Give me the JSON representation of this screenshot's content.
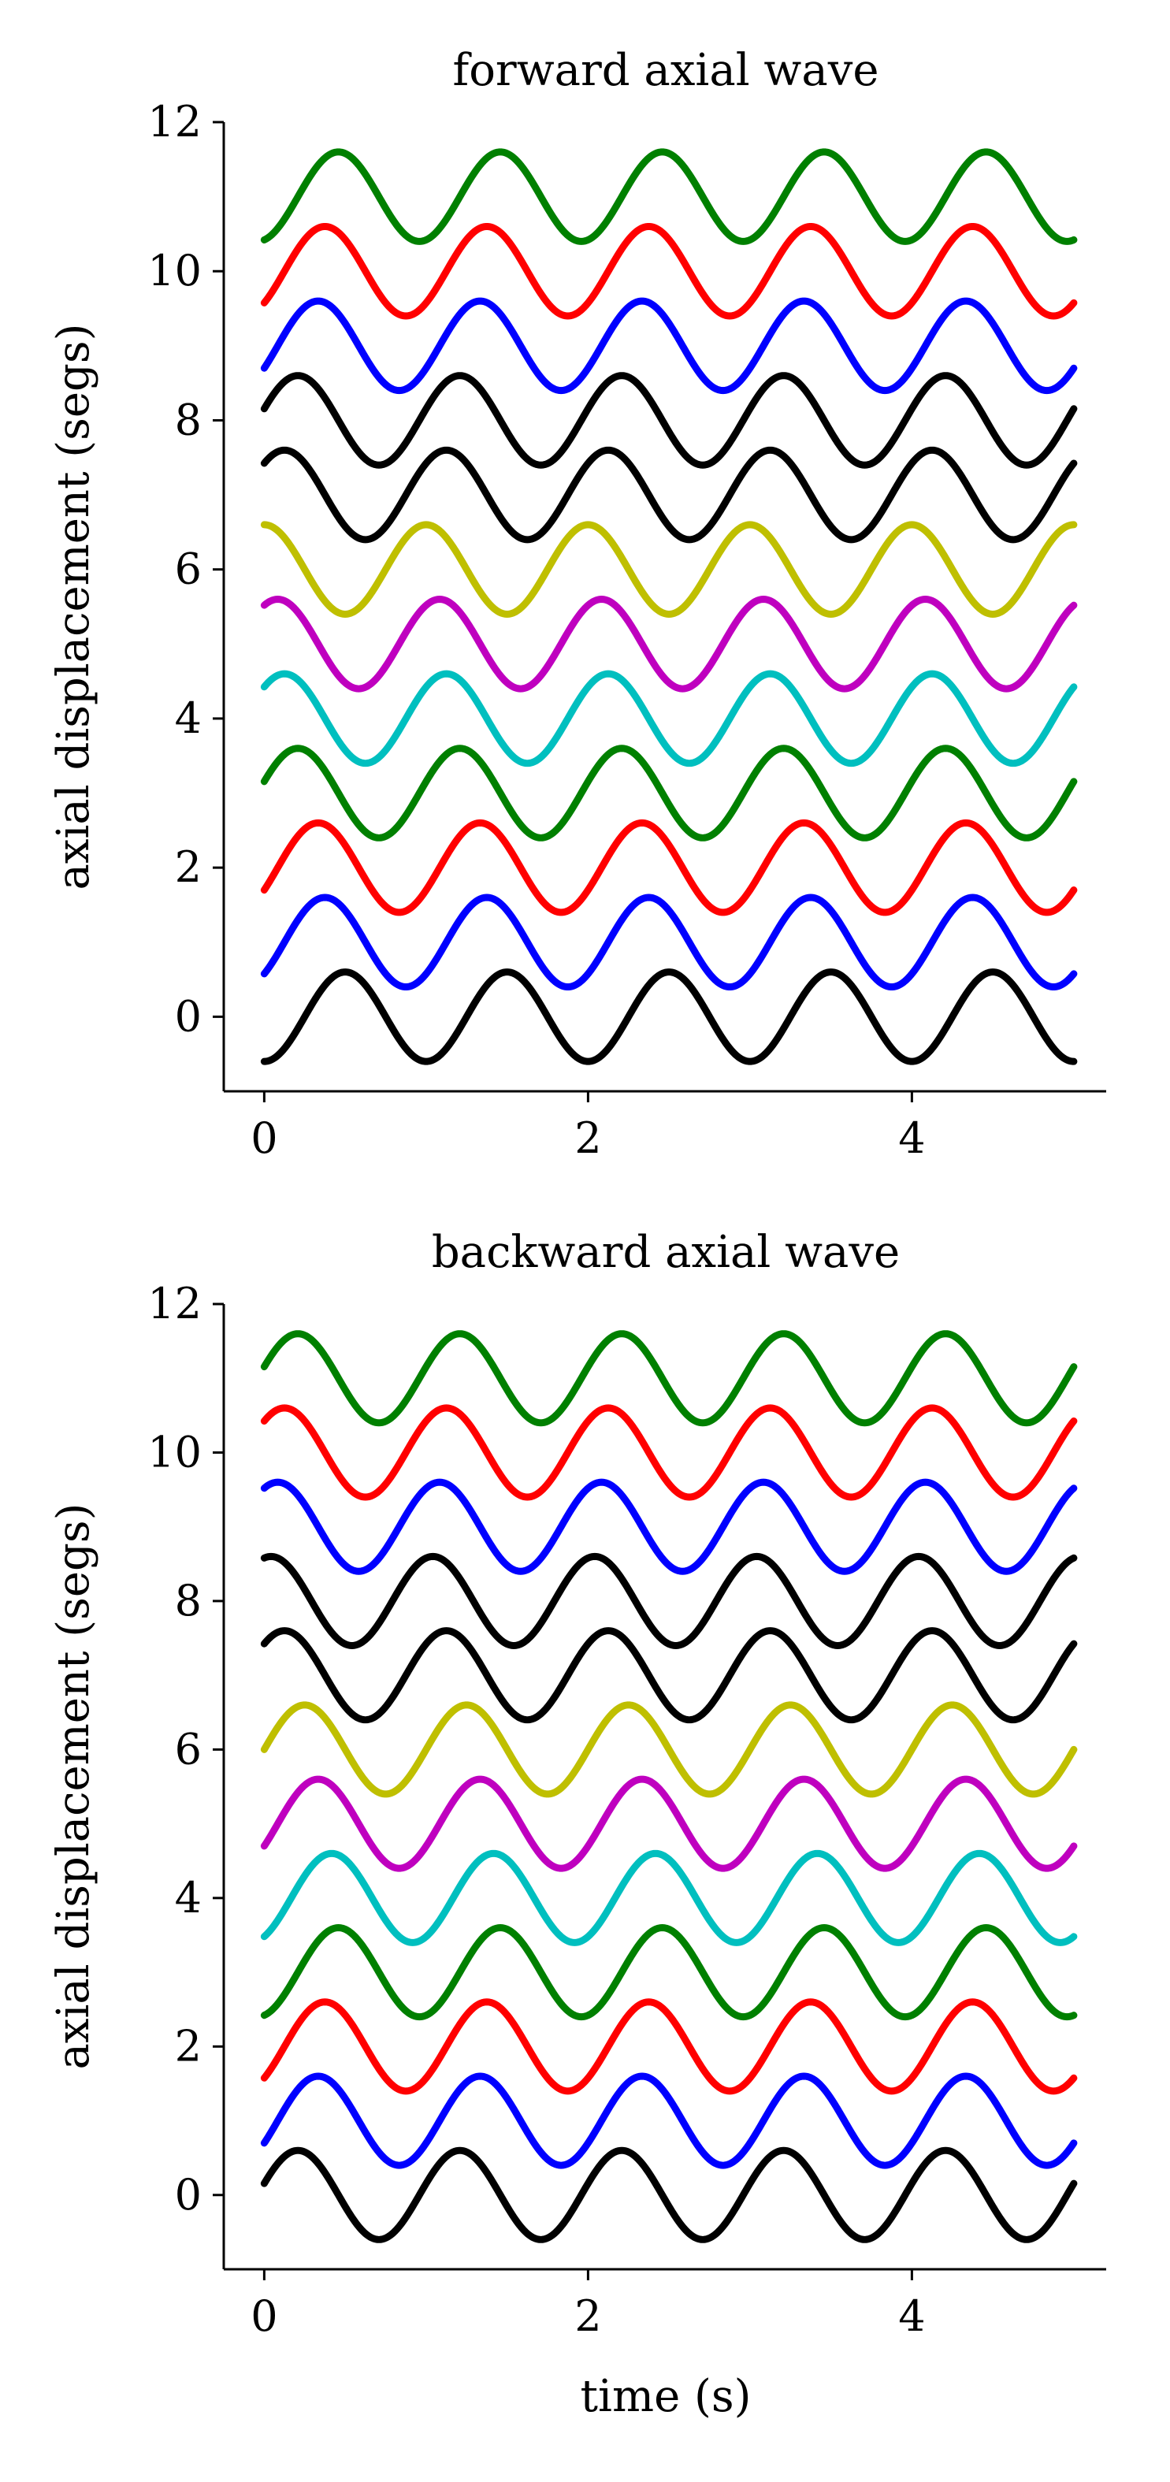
{
  "chart_data": [
    {
      "type": "line",
      "title": "forward axial wave",
      "xlabel": "",
      "ylabel": "axial displacement (segs)",
      "xlim": [
        -0.25,
        5.2
      ],
      "ylim": [
        -1.0,
        12.0
      ],
      "xticks": [
        "0",
        "2",
        "4"
      ],
      "yticks": [
        "0",
        "2",
        "4",
        "6",
        "8",
        "10",
        "12"
      ],
      "xtick_values": [
        0,
        2,
        4
      ],
      "ytick_values": [
        0,
        2,
        4,
        6,
        8,
        10,
        12
      ],
      "grid": false,
      "legend": "none",
      "function": "y = offset + 0.6 * sin(2*pi*(t/period) + phase)",
      "period": 1.0,
      "t_range": [
        0,
        5
      ],
      "series": [
        {
          "offset": 0,
          "amplitude": 0.6,
          "phase": -1.571,
          "color": "#000000"
        },
        {
          "offset": 1,
          "amplitude": 0.6,
          "phase": -0.785,
          "color": "#0000ff"
        },
        {
          "offset": 2,
          "amplitude": 0.6,
          "phase": -0.524,
          "color": "#ff0000"
        },
        {
          "offset": 3,
          "amplitude": 0.6,
          "phase": 0.262,
          "color": "#008000"
        },
        {
          "offset": 4,
          "amplitude": 0.6,
          "phase": 0.785,
          "color": "#00bfbf"
        },
        {
          "offset": 5,
          "amplitude": 0.6,
          "phase": 1.047,
          "color": "#bf00bf"
        },
        {
          "offset": 6,
          "amplitude": 0.6,
          "phase": 1.571,
          "color": "#bfbf00"
        },
        {
          "offset": 7,
          "amplitude": 0.6,
          "phase": 0.785,
          "color": "#000000"
        },
        {
          "offset": 8,
          "amplitude": 0.6,
          "phase": 0.262,
          "color": "#000000"
        },
        {
          "offset": 9,
          "amplitude": 0.6,
          "phase": -0.524,
          "color": "#0000ff"
        },
        {
          "offset": 10,
          "amplitude": 0.6,
          "phase": -0.785,
          "color": "#ff0000"
        },
        {
          "offset": 11,
          "amplitude": 0.6,
          "phase": -1.309,
          "color": "#008000"
        }
      ]
    },
    {
      "type": "line",
      "title": "backward axial wave",
      "xlabel": "time (s)",
      "ylabel": "axial displacement (segs)",
      "xlim": [
        -0.25,
        5.2
      ],
      "ylim": [
        -1.0,
        12.0
      ],
      "xticks": [
        "0",
        "2",
        "4"
      ],
      "yticks": [
        "0",
        "2",
        "4",
        "6",
        "8",
        "10",
        "12"
      ],
      "xtick_values": [
        0,
        2,
        4
      ],
      "ytick_values": [
        0,
        2,
        4,
        6,
        8,
        10,
        12
      ],
      "grid": false,
      "legend": "none",
      "function": "y = offset + 0.6 * sin(2*pi*(t/period) + phase)",
      "period": 1.0,
      "t_range": [
        0,
        5
      ],
      "series": [
        {
          "offset": 0,
          "amplitude": 0.6,
          "phase": 0.262,
          "color": "#000000"
        },
        {
          "offset": 1,
          "amplitude": 0.6,
          "phase": -0.524,
          "color": "#0000ff"
        },
        {
          "offset": 2,
          "amplitude": 0.6,
          "phase": -0.785,
          "color": "#ff0000"
        },
        {
          "offset": 3,
          "amplitude": 0.6,
          "phase": -1.309,
          "color": "#008000"
        },
        {
          "offset": 4,
          "amplitude": 0.6,
          "phase": -1.047,
          "color": "#00bfbf"
        },
        {
          "offset": 5,
          "amplitude": 0.6,
          "phase": -0.524,
          "color": "#bf00bf"
        },
        {
          "offset": 6,
          "amplitude": 0.6,
          "phase": 0.0,
          "color": "#bfbf00"
        },
        {
          "offset": 7,
          "amplitude": 0.6,
          "phase": 0.785,
          "color": "#000000"
        },
        {
          "offset": 8,
          "amplitude": 0.6,
          "phase": 1.309,
          "color": "#000000"
        },
        {
          "offset": 9,
          "amplitude": 0.6,
          "phase": 1.047,
          "color": "#0000ff"
        },
        {
          "offset": 10,
          "amplitude": 0.6,
          "phase": 0.785,
          "color": "#ff0000"
        },
        {
          "offset": 11,
          "amplitude": 0.6,
          "phase": 0.262,
          "color": "#008000"
        }
      ]
    }
  ]
}
